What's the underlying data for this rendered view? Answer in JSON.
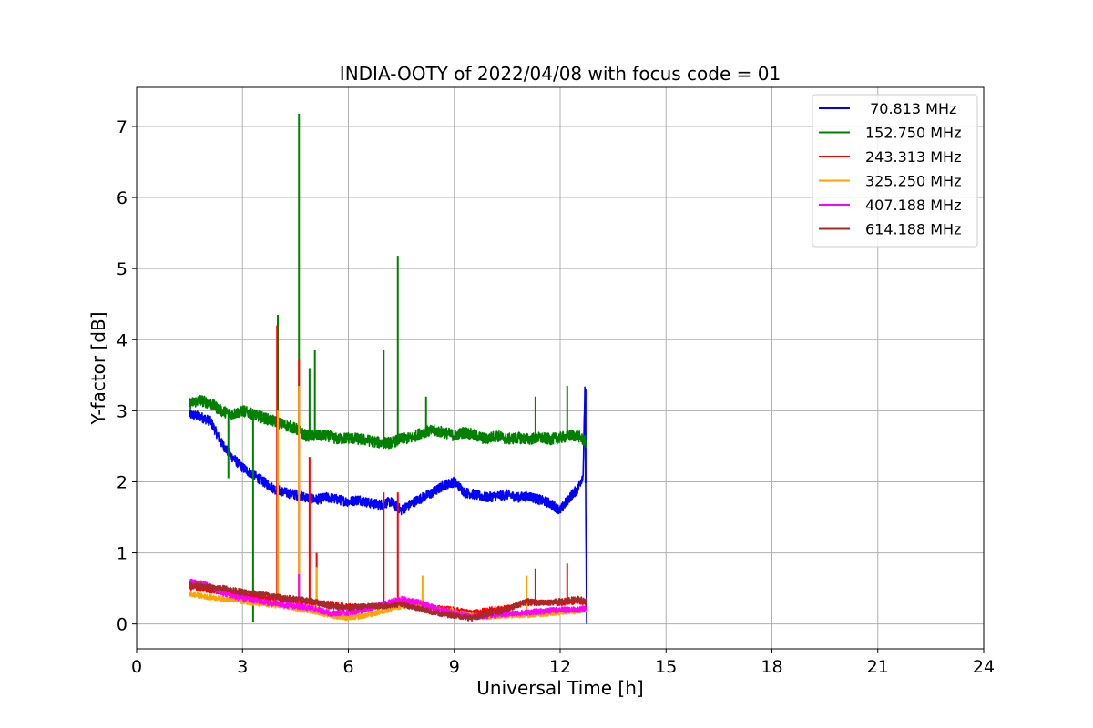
{
  "chart_data": {
    "type": "line",
    "title": "INDIA-OOTY of 2022/04/08 with focus code = 01",
    "xlabel": "Universal Time [h]",
    "ylabel": "Y-factor [dB]",
    "xlim": [
      0,
      24
    ],
    "ylim": [
      -0.35,
      7.55
    ],
    "xticks": [
      0,
      3,
      6,
      9,
      12,
      15,
      18,
      21,
      24
    ],
    "yticks": [
      0,
      1,
      2,
      3,
      4,
      5,
      6,
      7
    ],
    "grid": true,
    "legend_position": "top-right",
    "series": [
      {
        "name": " 70.813 MHz",
        "color": "#0000ff",
        "x": [
          1.5,
          1.8,
          2.1,
          2.4,
          2.7,
          3.0,
          3.3,
          3.6,
          3.9,
          4.2,
          4.5,
          4.8,
          5.1,
          5.4,
          5.7,
          6.0,
          6.3,
          6.6,
          6.9,
          7.2,
          7.5,
          7.8,
          8.1,
          8.4,
          8.7,
          9.0,
          9.3,
          9.6,
          9.9,
          10.2,
          10.5,
          10.8,
          11.1,
          11.4,
          11.7,
          12.0,
          12.3,
          12.5,
          12.65,
          12.7,
          12.75
        ],
        "y": [
          2.95,
          2.92,
          2.85,
          2.55,
          2.35,
          2.2,
          2.1,
          2.0,
          1.9,
          1.85,
          1.82,
          1.78,
          1.75,
          1.78,
          1.75,
          1.72,
          1.75,
          1.7,
          1.68,
          1.72,
          1.6,
          1.7,
          1.78,
          1.85,
          1.95,
          2.0,
          1.85,
          1.82,
          1.78,
          1.8,
          1.82,
          1.78,
          1.8,
          1.75,
          1.7,
          1.6,
          1.8,
          1.9,
          2.1,
          3.3,
          0.0
        ],
        "spikes": [
          [
            12.72,
            3.3
          ]
        ]
      },
      {
        "name": "152.750 MHz",
        "color": "#008000",
        "x": [
          1.5,
          1.8,
          2.1,
          2.4,
          2.7,
          3.0,
          3.3,
          3.6,
          3.9,
          4.2,
          4.5,
          4.8,
          5.1,
          5.4,
          5.7,
          6.0,
          6.3,
          6.6,
          6.9,
          7.2,
          7.5,
          7.8,
          8.1,
          8.4,
          8.7,
          9.0,
          9.3,
          9.6,
          9.9,
          10.2,
          10.5,
          10.8,
          11.1,
          11.4,
          11.7,
          12.0,
          12.3,
          12.5,
          12.75
        ],
        "y": [
          3.1,
          3.15,
          3.1,
          3.0,
          2.95,
          3.0,
          2.95,
          2.9,
          2.85,
          2.8,
          2.75,
          2.65,
          2.65,
          2.65,
          2.6,
          2.62,
          2.6,
          2.58,
          2.55,
          2.55,
          2.6,
          2.62,
          2.7,
          2.72,
          2.7,
          2.65,
          2.7,
          2.65,
          2.6,
          2.65,
          2.6,
          2.62,
          2.6,
          2.62,
          2.6,
          2.62,
          2.65,
          2.65,
          2.55
        ],
        "spikes": [
          [
            2.6,
            2.05
          ],
          [
            3.3,
            0.02
          ],
          [
            4.0,
            4.35
          ],
          [
            4.6,
            7.18
          ],
          [
            4.9,
            3.6
          ],
          [
            5.05,
            3.85
          ],
          [
            7.0,
            3.85
          ],
          [
            7.4,
            5.18
          ],
          [
            8.2,
            3.2
          ],
          [
            11.3,
            3.2
          ],
          [
            12.2,
            3.35
          ]
        ]
      },
      {
        "name": "243.313 MHz",
        "color": "#ff0000",
        "x": [
          1.5,
          2.0,
          2.5,
          3.0,
          3.5,
          4.0,
          4.5,
          5.0,
          5.5,
          6.0,
          6.5,
          7.0,
          7.5,
          8.0,
          8.5,
          9.0,
          9.5,
          10.0,
          10.5,
          11.0,
          11.5,
          12.0,
          12.5,
          12.75
        ],
        "y": [
          0.52,
          0.48,
          0.45,
          0.42,
          0.38,
          0.36,
          0.33,
          0.3,
          0.28,
          0.25,
          0.24,
          0.26,
          0.28,
          0.25,
          0.22,
          0.2,
          0.15,
          0.2,
          0.22,
          0.3,
          0.3,
          0.3,
          0.32,
          0.3
        ],
        "spikes": [
          [
            3.98,
            4.2
          ],
          [
            4.6,
            3.72
          ],
          [
            4.9,
            2.35
          ],
          [
            5.1,
            1.0
          ],
          [
            7.0,
            1.85
          ],
          [
            7.4,
            1.85
          ],
          [
            11.3,
            0.78
          ],
          [
            12.2,
            0.85
          ]
        ]
      },
      {
        "name": "325.250 MHz",
        "color": "#ffa500",
        "x": [
          1.5,
          2.0,
          2.5,
          3.0,
          3.5,
          4.0,
          4.5,
          5.0,
          5.5,
          6.0,
          6.5,
          7.0,
          7.5,
          8.0,
          8.5,
          9.0,
          9.5,
          10.0,
          10.5,
          11.0,
          11.5,
          12.0,
          12.5,
          12.75
        ],
        "y": [
          0.42,
          0.38,
          0.35,
          0.32,
          0.28,
          0.26,
          0.22,
          0.18,
          0.12,
          0.08,
          0.12,
          0.18,
          0.25,
          0.25,
          0.22,
          0.18,
          0.12,
          0.1,
          0.12,
          0.12,
          0.14,
          0.16,
          0.18,
          0.2
        ],
        "spikes": [
          [
            4.0,
            3.0
          ],
          [
            4.6,
            3.35
          ],
          [
            5.1,
            0.8
          ],
          [
            8.1,
            0.68
          ],
          [
            11.05,
            0.68
          ]
        ]
      },
      {
        "name": "407.188 MHz",
        "color": "#ff00ff",
        "x": [
          1.5,
          2.0,
          2.5,
          3.0,
          3.5,
          4.0,
          4.5,
          5.0,
          5.5,
          6.0,
          6.5,
          7.0,
          7.5,
          8.0,
          8.5,
          9.0,
          9.5,
          10.0,
          10.5,
          11.0,
          11.5,
          12.0,
          12.5,
          12.75
        ],
        "y": [
          0.6,
          0.55,
          0.42,
          0.36,
          0.32,
          0.28,
          0.25,
          0.22,
          0.15,
          0.16,
          0.2,
          0.28,
          0.35,
          0.3,
          0.22,
          0.15,
          0.1,
          0.12,
          0.14,
          0.16,
          0.18,
          0.2,
          0.2,
          0.22
        ],
        "spikes": [
          [
            4.6,
            0.7
          ]
        ]
      },
      {
        "name": "614.188 MHz",
        "color": "#a52a2a",
        "x": [
          1.5,
          2.0,
          2.5,
          3.0,
          3.5,
          4.0,
          4.5,
          5.0,
          5.5,
          6.0,
          6.5,
          7.0,
          7.5,
          8.0,
          8.5,
          9.0,
          9.5,
          10.0,
          10.5,
          11.0,
          11.5,
          12.0,
          12.5,
          12.75
        ],
        "y": [
          0.55,
          0.52,
          0.5,
          0.45,
          0.42,
          0.38,
          0.35,
          0.32,
          0.25,
          0.22,
          0.25,
          0.25,
          0.28,
          0.22,
          0.15,
          0.12,
          0.08,
          0.15,
          0.2,
          0.32,
          0.3,
          0.32,
          0.35,
          0.32
        ],
        "spikes": []
      }
    ]
  }
}
